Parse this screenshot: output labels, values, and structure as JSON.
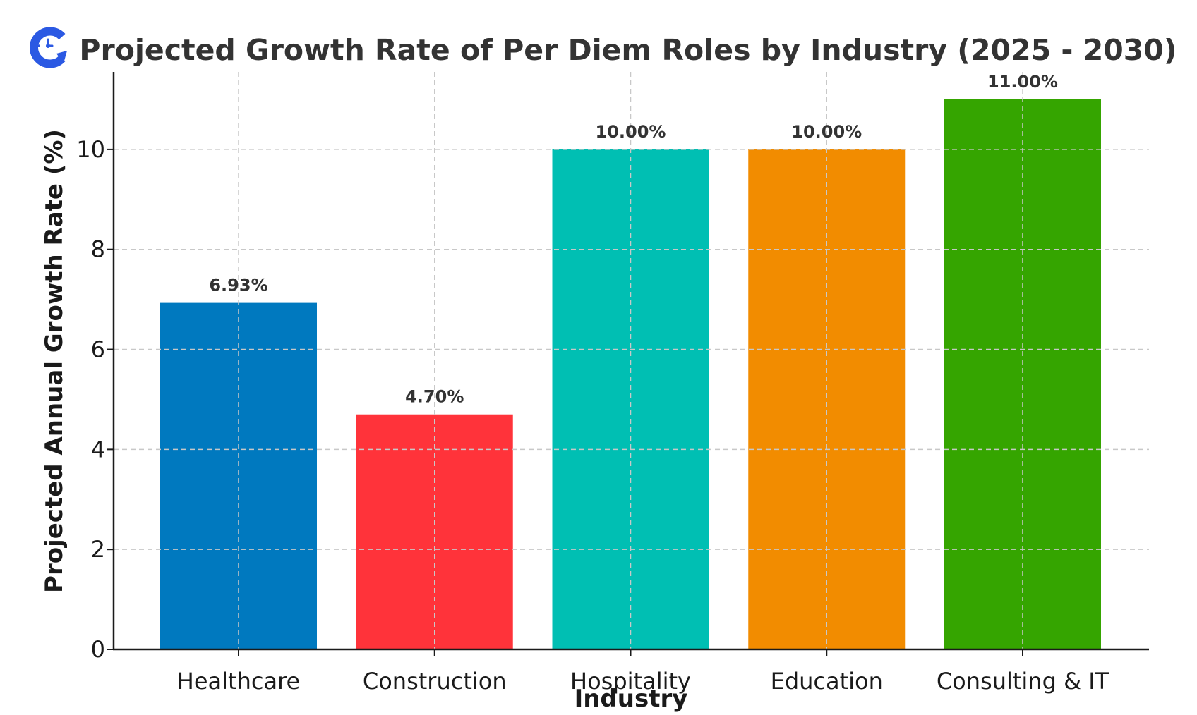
{
  "logo": {
    "icon": "clock-refresh-icon",
    "color": "#2b59e3"
  },
  "chart_data": {
    "type": "bar",
    "title": "Projected Growth Rate of Per Diem Roles by Industry (2025 - 2030)",
    "xlabel": "Industry",
    "ylabel": "Projected Annual Growth Rate (%)",
    "categories": [
      "Healthcare",
      "Construction",
      "Hospitality",
      "Education",
      "Consulting & IT"
    ],
    "values": [
      6.93,
      4.7,
      10.0,
      10.0,
      11.0
    ],
    "value_labels": [
      "6.93%",
      "4.70%",
      "10.00%",
      "10.00%",
      "11.00%"
    ],
    "colors": [
      "#0079bf",
      "#ff333a",
      "#00bfb3",
      "#f28c00",
      "#35a500"
    ],
    "ylim": [
      0,
      11.55
    ],
    "yticks": [
      0,
      2,
      4,
      6,
      8,
      10
    ],
    "grid": true,
    "grid_style": "dashed"
  }
}
